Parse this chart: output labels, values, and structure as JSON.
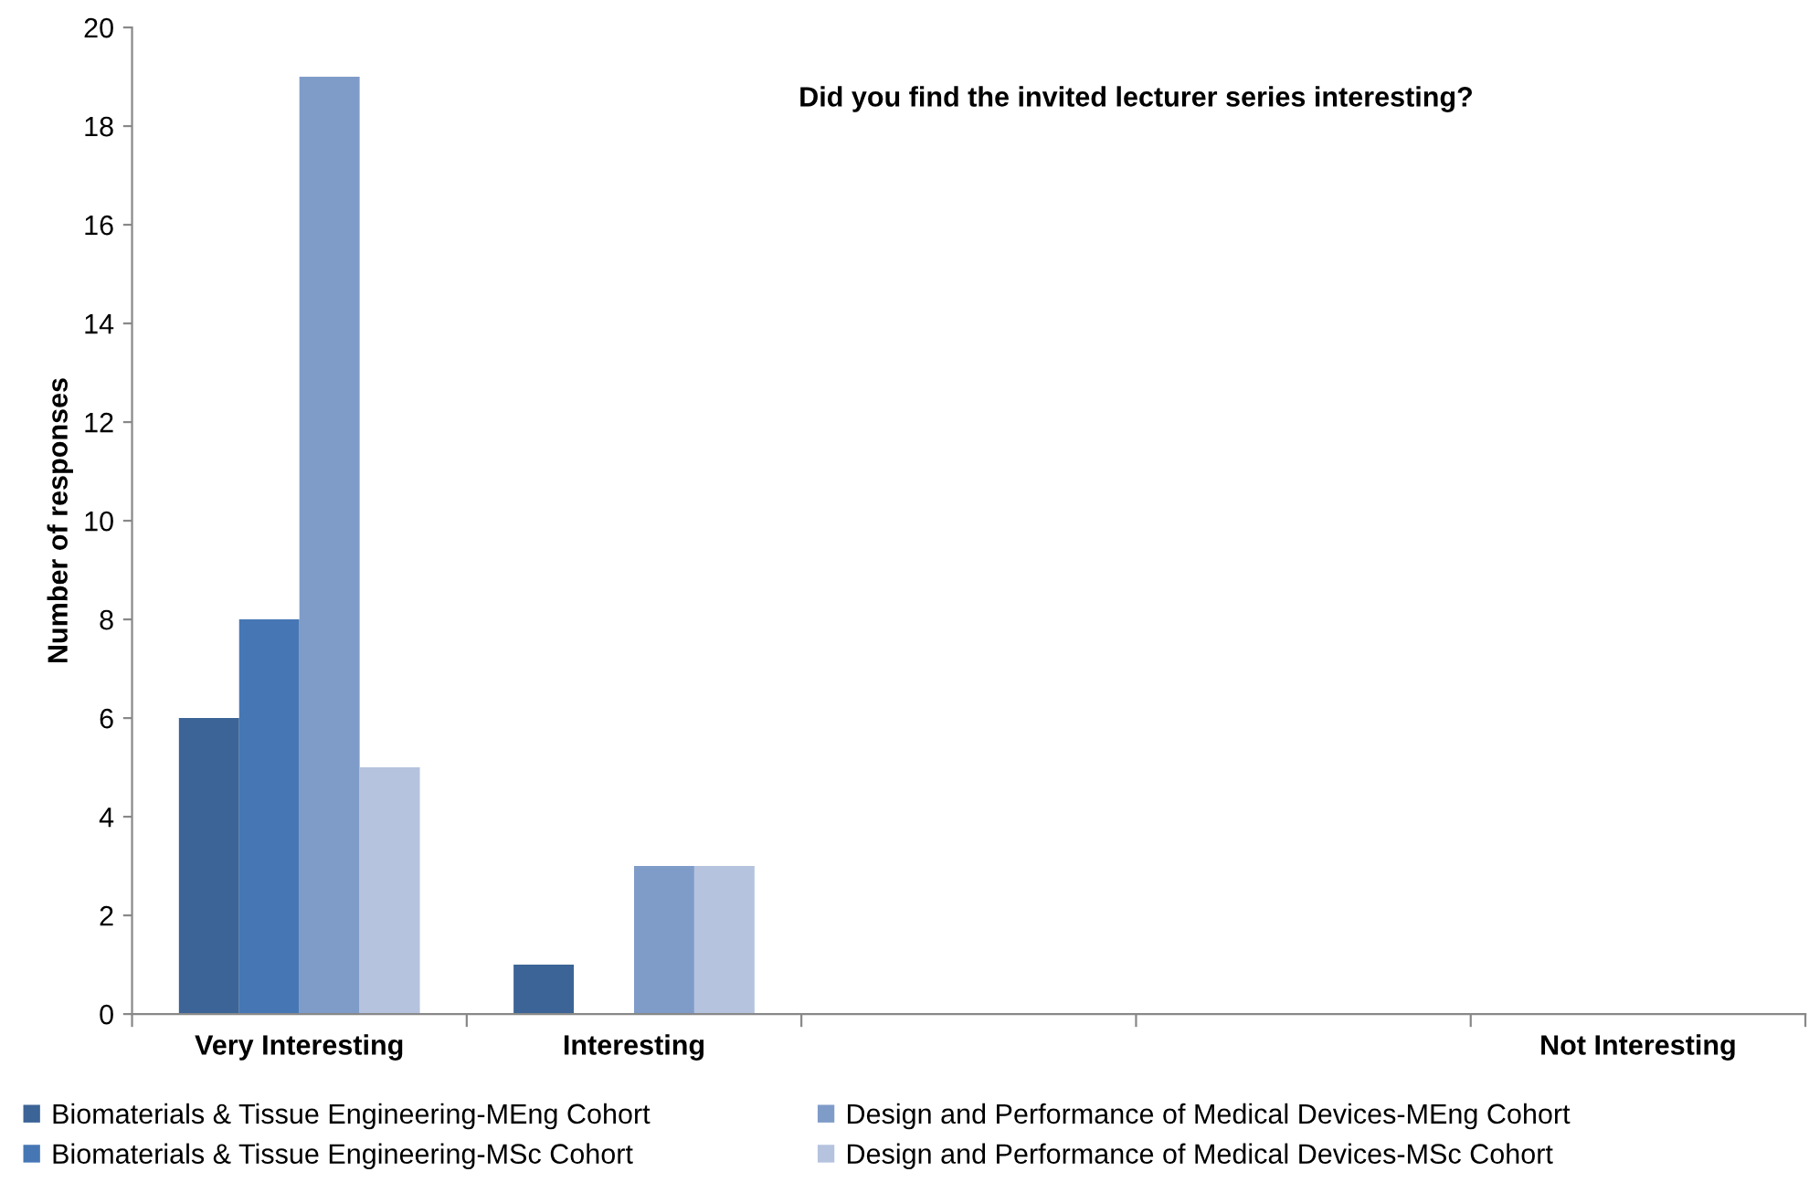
{
  "chart_data": {
    "type": "bar",
    "title": "Did you find the invited lecturer series interesting?",
    "ylabel": "Number of responses",
    "categories": [
      "Very Interesting",
      "Interesting",
      null,
      null,
      "Not Interesting"
    ],
    "series": [
      {
        "name": "Biomaterials & Tissue Engineering-MEng Cohort",
        "color": "#3c6496",
        "values": [
          6,
          1,
          0,
          0,
          0
        ]
      },
      {
        "name": "Biomaterials & Tissue Engineering-MSc Cohort",
        "color": "#4677b4",
        "values": [
          8,
          0,
          0,
          0,
          0
        ]
      },
      {
        "name": "Design and Performance of Medical Devices-MEng Cohort",
        "color": "#7f9cc9",
        "values": [
          19,
          3,
          0,
          0,
          0
        ]
      },
      {
        "name": "Design and Performance of Medical Devices-MSc Cohort",
        "color": "#b5c3de",
        "values": [
          5,
          3,
          0,
          0,
          0
        ]
      }
    ],
    "ylim": [
      0,
      20
    ],
    "yticks": [
      0,
      2,
      4,
      6,
      8,
      10,
      12,
      14,
      16,
      18,
      20
    ],
    "grid": false,
    "legend": "bottom"
  }
}
